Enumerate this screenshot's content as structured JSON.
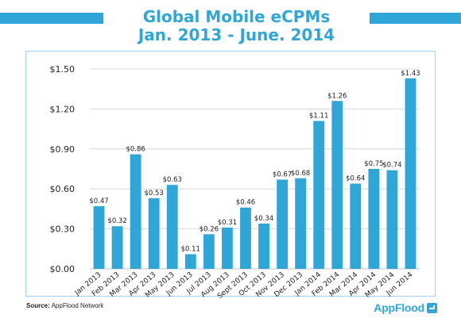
{
  "header": {
    "title_line1": "Global Mobile eCPMs",
    "title_line2": "Jan. 2013 - June. 2014"
  },
  "footer": {
    "source_label": "Source:",
    "source_text": "AppFlood Network",
    "brand": "AppFlood"
  },
  "colors": {
    "accent": "#2ea7d8",
    "bar": "#2ea7d8",
    "grid": "#cfcfcf"
  },
  "icons": {
    "brand_mark": "appflood-logo-icon"
  },
  "chart_data": {
    "type": "bar",
    "title": "Global Mobile eCPMs Jan. 2013 - June. 2014",
    "xlabel": "",
    "ylabel": "",
    "ylim": [
      0,
      1.5
    ],
    "yticks": [
      0.0,
      0.3,
      0.6,
      0.9,
      1.2,
      1.5
    ],
    "ytick_labels": [
      "$0.00",
      "$0.30",
      "$0.60",
      "$0.90",
      "$1.20",
      "$1.50"
    ],
    "grid": true,
    "categories": [
      "Jan 2013",
      "Feb 2013",
      "Mar 2013",
      "Apr 2013",
      "May 2013",
      "Jun 2013",
      "Jul 2013",
      "Aug 2013",
      "Sept 2013",
      "Oct 2013",
      "Nov 2013",
      "Dec 2013",
      "Jan 2014",
      "Feb 2014",
      "Mar 2014",
      "Apr 2014",
      "May 2014",
      "Jun 2014"
    ],
    "values": [
      0.47,
      0.32,
      0.86,
      0.53,
      0.63,
      0.11,
      0.26,
      0.31,
      0.46,
      0.34,
      0.67,
      0.68,
      1.11,
      1.26,
      0.64,
      0.75,
      0.74,
      1.43
    ],
    "data_labels": [
      "$0.47",
      "$0.32",
      "$0.86",
      "$0.53",
      "$0.63",
      "$0.11",
      "$0.26",
      "$0.31",
      "$0.46",
      "$0.34",
      "$0.67",
      "$0.68",
      "$1.11",
      "$1.26",
      "$0.64",
      "$0.75",
      "$0.74",
      "$1.43"
    ]
  }
}
